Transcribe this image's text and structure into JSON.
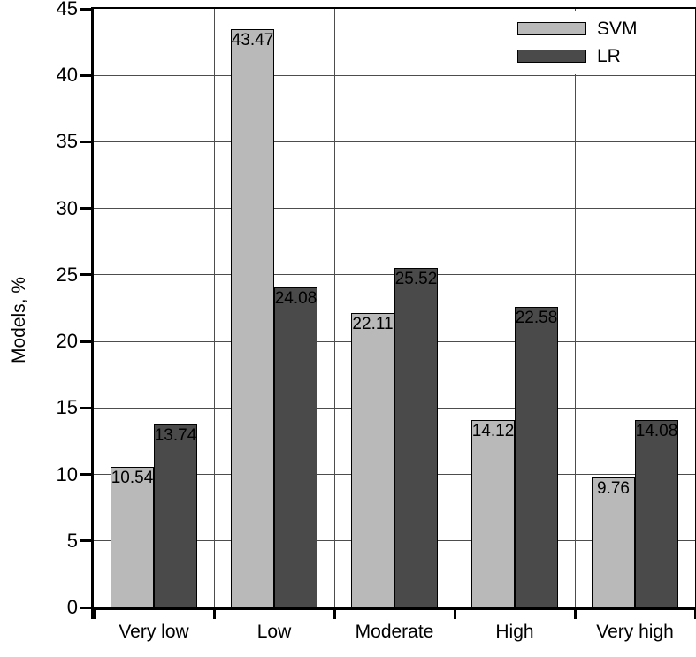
{
  "figure": {
    "background": "#ffffff",
    "axis_color": "#000000",
    "grid_color": "#4d4d4d"
  },
  "chart_data": {
    "type": "bar",
    "title": "",
    "xlabel": "",
    "ylabel": "Models, %",
    "categories": [
      "Very low",
      "Low",
      "Moderate",
      "High",
      "Very high"
    ],
    "series": [
      {
        "name": "SVM",
        "color": "#b9b9b9",
        "values": [
          10.54,
          43.47,
          22.11,
          14.12,
          9.76
        ]
      },
      {
        "name": "LR",
        "color": "#4a4a4a",
        "values": [
          13.74,
          24.08,
          25.52,
          22.58,
          14.08
        ]
      }
    ],
    "value_label_texts": {
      "SVM": [
        "10.54",
        "43.47",
        "22.11",
        "14.12",
        "9.76"
      ],
      "LR": [
        "13.74",
        "24.08",
        "25.52",
        "22.58",
        "14.08"
      ]
    },
    "ylim": [
      0,
      45
    ],
    "yticks": [
      0,
      5,
      10,
      15,
      20,
      25,
      30,
      35,
      40,
      45
    ],
    "grid": "on",
    "legend_position": "top-right",
    "value_labels_position": "inside-top"
  }
}
